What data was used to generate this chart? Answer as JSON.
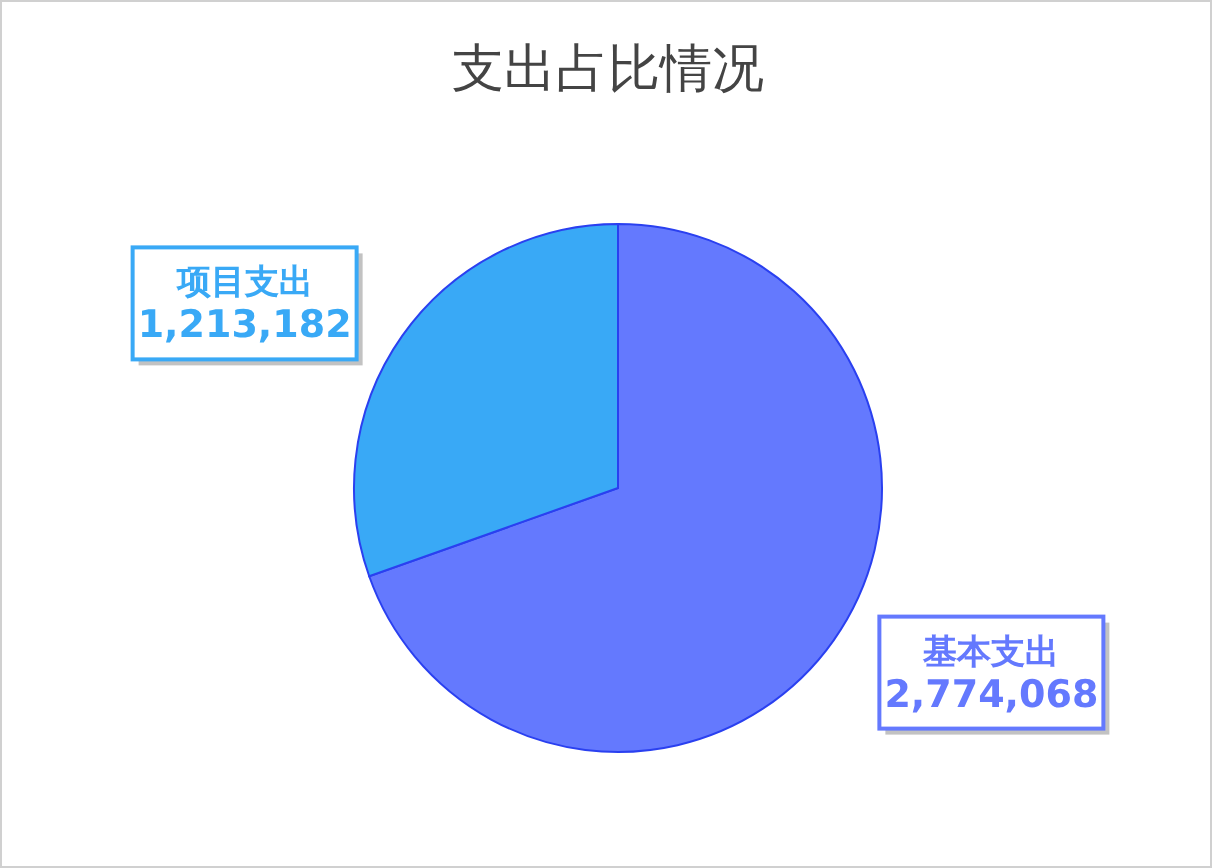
{
  "chart_data": {
    "type": "pie",
    "title": "支出占比情况",
    "categories": [
      "基本支出",
      "项目支出"
    ],
    "values": [
      2774068,
      1213182
    ],
    "colors": [
      "#6479fe",
      "#39a9f6"
    ],
    "value_labels": [
      "2,774,068",
      "1,213,182"
    ]
  }
}
